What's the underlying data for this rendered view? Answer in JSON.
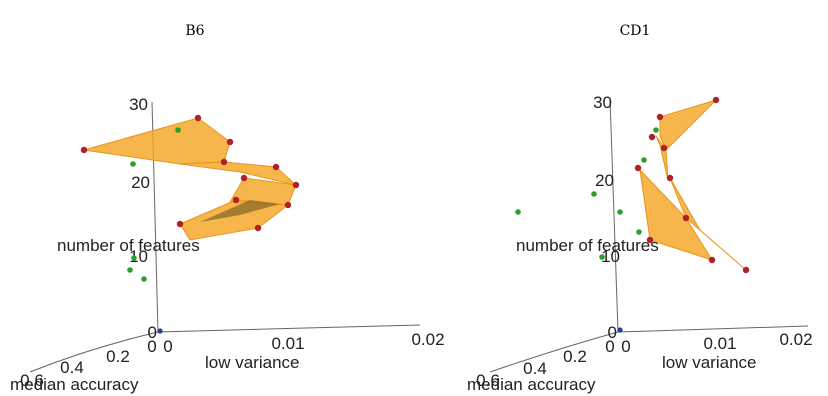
{
  "chart_data": [
    {
      "type": "scatter",
      "title": "B6",
      "xlabel": "low variance",
      "ylabel": "median accuracy",
      "zlabel": "number of features",
      "x_ticks": [
        "0",
        "0.01",
        "0.02"
      ],
      "y_ticks": [
        "0.6",
        "0.4",
        "0.2",
        "0"
      ],
      "z_ticks": [
        "0",
        "10",
        "20",
        "30"
      ],
      "colors": {
        "surface": "#f5a623",
        "frontier_point": "#b0202a",
        "other_point": "#2ca02c",
        "origin_point": "#1f3fa0"
      }
    },
    {
      "type": "scatter",
      "title": "CD1",
      "xlabel": "low variance",
      "ylabel": "median accuracy",
      "zlabel": "number of features",
      "x_ticks": [
        "0",
        "0.01",
        "0.02"
      ],
      "y_ticks": [
        "0.6",
        "0.4",
        "0.2",
        "0"
      ],
      "z_ticks": [
        "0",
        "10",
        "20",
        "30"
      ],
      "colors": {
        "surface": "#f5a623",
        "frontier_point": "#b0202a",
        "other_point": "#2ca02c",
        "origin_point": "#1f3fa0"
      }
    }
  ]
}
